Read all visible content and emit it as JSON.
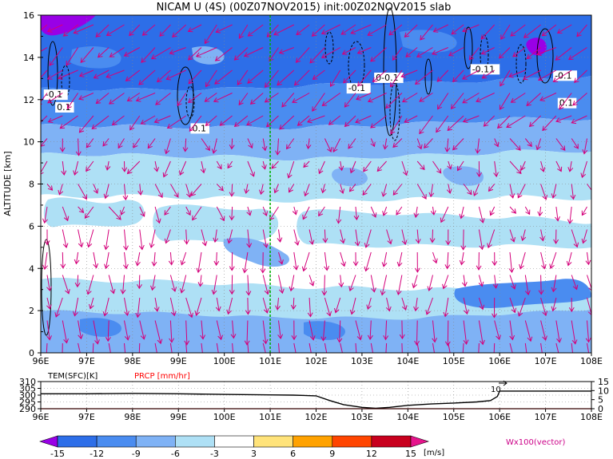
{
  "chart_data": [
    {
      "type": "heatmap",
      "title": "NICAM U (4S) (00Z07NOV2015) init:00Z02NOV2015 slab",
      "ylabel": "ALTITUDE [km]",
      "xlabel": "",
      "x_ticks": [
        "96E",
        "97E",
        "98E",
        "99E",
        "100E",
        "101E",
        "102E",
        "103E",
        "104E",
        "105E",
        "106E",
        "107E",
        "108E"
      ],
      "xlim": [
        96,
        108
      ],
      "y_ticks": [
        "0",
        "2",
        "4",
        "6",
        "8",
        "10",
        "12",
        "14",
        "16"
      ],
      "ylim": [
        0,
        16
      ],
      "grid": true,
      "marker_longitude": 101,
      "contour_labels": [
        {
          "text": "-0.1",
          "lon": 96.1,
          "alt": 12.1
        },
        {
          "text": "0.1",
          "lon": 96.35,
          "alt": 11.5
        },
        {
          "text": "0.1",
          "lon": 99.3,
          "alt": 10.5
        },
        {
          "text": "-0.1",
          "lon": 102.7,
          "alt": 12.4
        },
        {
          "text": "0-0.1",
          "lon": 103.3,
          "alt": 12.9
        },
        {
          "text": "-0.11",
          "lon": 105.4,
          "alt": 13.3
        },
        {
          "text": "-0.1",
          "lon": 107.2,
          "alt": 13.0
        },
        {
          "text": "0.1",
          "lon": 107.3,
          "alt": 11.7
        }
      ],
      "vector_label": "Wx100(vector)"
    },
    {
      "type": "line",
      "series": [
        {
          "name": "TEM(SFC)[K]",
          "color": "#000000",
          "x": [
            96,
            97,
            98,
            99,
            100,
            101,
            101.5,
            102,
            102.3,
            102.6,
            103,
            103.3,
            103.6,
            104,
            104.5,
            105,
            105.5,
            105.8,
            105.95,
            106,
            107,
            108
          ],
          "values": [
            301,
            301,
            301.3,
            301,
            300.5,
            300.2,
            300,
            299.5,
            296,
            293,
            291,
            290.3,
            291,
            292.5,
            293.5,
            294.2,
            295,
            296,
            299,
            303,
            303,
            303
          ]
        },
        {
          "name": "PRCP [mm/hr]",
          "color": "#ff0000",
          "x": [
            96,
            105.8,
            106,
            108
          ],
          "values": [
            0,
            0,
            0,
            0
          ]
        }
      ],
      "y_left_ticks": [
        "310",
        "305",
        "300",
        "295",
        "290"
      ],
      "y_left_range": [
        290,
        310
      ],
      "y_right_ticks": [
        "15",
        "10",
        "5",
        "0"
      ],
      "y_right_range": [
        0,
        15
      ],
      "x_ticks": [
        "96E",
        "97E",
        "98E",
        "99E",
        "100E",
        "101E",
        "102E",
        "103E",
        "104E",
        "105E",
        "106E",
        "107E",
        "108E"
      ],
      "annotation": "10"
    }
  ],
  "colorbar": {
    "ticks": [
      "-15",
      "-12",
      "-9",
      "-6",
      "-3",
      "3",
      "6",
      "9",
      "12",
      "15"
    ],
    "unit": "[m/s]",
    "colors": [
      "#9900e6",
      "#2d6ee8",
      "#4a8cf0",
      "#7fb2f5",
      "#aee0f5",
      "#ffffff",
      "#ffe37a",
      "#ffa200",
      "#ff4500",
      "#c8001e",
      "#e6148c"
    ]
  }
}
